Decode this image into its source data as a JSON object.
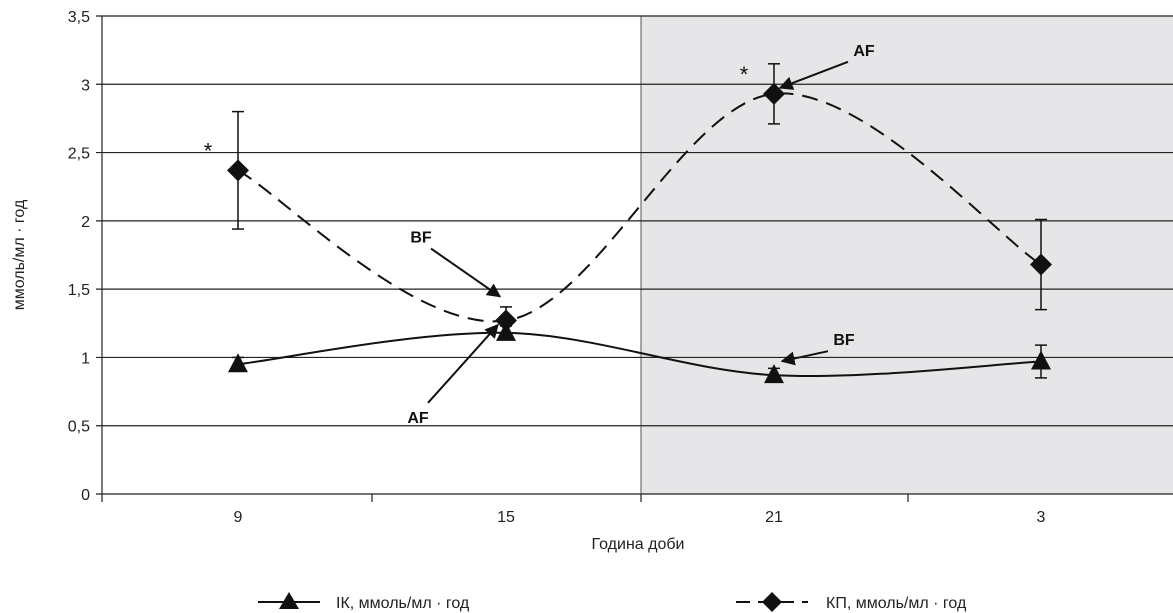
{
  "chart_data": {
    "type": "line",
    "categories": [
      "9",
      "15",
      "21",
      "3"
    ],
    "xlabel": "Година доби",
    "ylabel": "ммоль/мл · год",
    "ylim": [
      0,
      3.5
    ],
    "yticks": [
      "0",
      "0,5",
      "1",
      "1,5",
      "2",
      "2,5",
      "3",
      "3,5"
    ],
    "grid": true,
    "shaded_region": {
      "from_hour": "18",
      "to_hour": "6",
      "color": "#e6e6e9"
    },
    "legend_position": "bottom",
    "series": [
      {
        "name": "ІК, ммоль/мл · год",
        "marker": "triangle",
        "line_style": "solid",
        "values": [
          0.95,
          1.18,
          0.87,
          0.97
        ],
        "errors": [
          0.05,
          0.05,
          0.05,
          0.12
        ]
      },
      {
        "name": "КП, ммоль/мл · год",
        "marker": "diamond",
        "line_style": "dashed",
        "values": [
          2.37,
          1.27,
          2.93,
          1.68
        ],
        "errors": [
          0.43,
          0.1,
          0.22,
          0.33
        ]
      }
    ],
    "annotations": [
      {
        "text": "AF",
        "series": 1,
        "point": 2
      },
      {
        "text": "BF",
        "series": 1,
        "point": 1
      },
      {
        "text": "AF",
        "series": 0,
        "point": 1
      },
      {
        "text": "BF",
        "series": 0,
        "point": 2
      }
    ],
    "significance_marks": [
      {
        "text": "*",
        "series": 1,
        "point": 0
      },
      {
        "text": "*",
        "series": 1,
        "point": 2
      }
    ]
  }
}
